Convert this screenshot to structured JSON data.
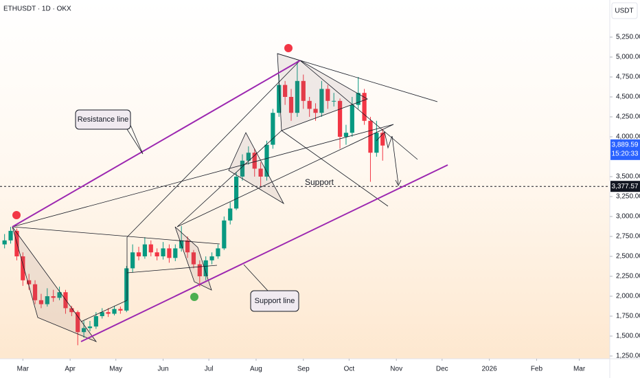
{
  "chart_data": {
    "type": "candlestick",
    "title": "ETHUSDT · 1D · OKX",
    "currency": "USDT",
    "up_color": "#089981",
    "down_color": "#f23645",
    "grid": false,
    "x": [
      -12,
      -8,
      -4,
      0,
      4,
      8,
      12,
      16,
      20,
      24,
      28,
      32,
      36,
      40,
      44,
      48,
      52,
      56,
      60,
      64,
      68,
      72,
      76,
      80,
      84,
      88,
      92,
      96,
      100,
      104,
      108,
      112,
      116,
      120,
      124,
      128,
      132,
      136,
      140,
      144,
      148,
      152,
      156,
      160,
      164,
      168,
      172,
      176,
      180,
      184,
      188,
      192,
      196,
      200,
      204,
      208,
      212,
      216,
      220,
      224,
      228,
      232,
      236
    ],
    "open": [
      2650,
      2700,
      2820,
      2500,
      2200,
      2150,
      1950,
      1900,
      2000,
      1980,
      2050,
      1850,
      1800,
      1550,
      1600,
      1620,
      1750,
      1800,
      1780,
      1840,
      1820,
      2350,
      2550,
      2500,
      2650,
      2550,
      2500,
      2600,
      2480,
      2600,
      2700,
      2550,
      2400,
      2250,
      2450,
      2500,
      2600,
      2950,
      3100,
      3500,
      3700,
      3800,
      3600,
      3500,
      3900,
      4300,
      4650,
      4500,
      4300,
      4700,
      4450,
      4350,
      4300,
      4600,
      4450,
      4450,
      4000,
      4050,
      4400,
      4550,
      4200,
      3800,
      4050
    ],
    "high": [
      2780,
      2870,
      2850,
      2550,
      2280,
      2200,
      2030,
      2100,
      2080,
      2120,
      2080,
      1880,
      1820,
      1690,
      1690,
      1800,
      1850,
      1850,
      1880,
      1870,
      2380,
      2650,
      2620,
      2740,
      2700,
      2600,
      2680,
      2650,
      2650,
      2880,
      2750,
      2580,
      2450,
      2500,
      2550,
      2650,
      3000,
      3180,
      3550,
      3780,
      3880,
      3850,
      3680,
      3950,
      4350,
      4780,
      4700,
      4600,
      4950,
      4780,
      4500,
      4420,
      4700,
      4650,
      4550,
      4480,
      4150,
      4500,
      4750,
      4600,
      4250,
      4200,
      4100
    ],
    "low": [
      2600,
      2660,
      2450,
      2130,
      2080,
      1900,
      1850,
      1870,
      1930,
      1950,
      1780,
      1750,
      1385,
      1480,
      1560,
      1590,
      1720,
      1740,
      1760,
      1780,
      1800,
      2300,
      2450,
      2470,
      2500,
      2450,
      2460,
      2420,
      2440,
      2560,
      2480,
      2350,
      2120,
      2200,
      2400,
      2470,
      2580,
      2900,
      3080,
      3450,
      3650,
      3500,
      3380,
      3450,
      3850,
      4250,
      4400,
      4200,
      4250,
      4350,
      4250,
      4200,
      4250,
      4350,
      4380,
      3850,
      3900,
      4000,
      4350,
      4150,
      3435,
      3750,
      3700
    ],
    "close": [
      2700,
      2820,
      2500,
      2200,
      2150,
      1950,
      1900,
      2000,
      1980,
      2050,
      1850,
      1800,
      1550,
      1600,
      1620,
      1750,
      1800,
      1780,
      1840,
      1820,
      2350,
      2550,
      2500,
      2650,
      2550,
      2500,
      2600,
      2480,
      2600,
      2700,
      2550,
      2400,
      2250,
      2450,
      2500,
      2600,
      2950,
      3100,
      3500,
      3700,
      3800,
      3600,
      3500,
      3900,
      4300,
      4650,
      4500,
      4300,
      4700,
      4450,
      4350,
      4300,
      4600,
      4450,
      4450,
      4000,
      4050,
      4400,
      4550,
      4200,
      3800,
      4050,
      3890
    ],
    "xlim": [
      -15,
      385
    ],
    "xticks": [
      {
        "value": 0,
        "label": "Mar"
      },
      {
        "value": 31,
        "label": "Apr"
      },
      {
        "value": 61,
        "label": "May"
      },
      {
        "value": 92,
        "label": "Jun"
      },
      {
        "value": 122,
        "label": "Jul"
      },
      {
        "value": 153,
        "label": "Aug"
      },
      {
        "value": 184,
        "label": "Sep"
      },
      {
        "value": 214,
        "label": "Oct"
      },
      {
        "value": 245,
        "label": "Nov"
      },
      {
        "value": 275,
        "label": "Dec"
      },
      {
        "value": 306,
        "label": "2026"
      },
      {
        "value": 337,
        "label": "Feb"
      },
      {
        "value": 365,
        "label": "Mar"
      }
    ],
    "ylim": [
      1215.5,
      5715.5
    ],
    "yticks": [
      {
        "value": 1250,
        "label": "1,250.00"
      },
      {
        "value": 1500,
        "label": "1,500.00"
      },
      {
        "value": 1750,
        "label": "1,750.00"
      },
      {
        "value": 2000,
        "label": "2,000.00"
      },
      {
        "value": 2250,
        "label": "2,250.00"
      },
      {
        "value": 2500,
        "label": "2,500.00"
      },
      {
        "value": 2750,
        "label": "2,750.00"
      },
      {
        "value": 3000,
        "label": "3,000.00"
      },
      {
        "value": 3250,
        "label": "3,250.00"
      },
      {
        "value": 3500,
        "label": "3,500.00"
      },
      {
        "value": 4000,
        "label": "4,000.00"
      },
      {
        "value": 4250,
        "label": "4,250.00"
      },
      {
        "value": 4500,
        "label": "4,500.00"
      },
      {
        "value": 4750,
        "label": "4,750.00"
      },
      {
        "value": 5000,
        "label": "5,000.00"
      },
      {
        "value": 5250,
        "label": "5,250.00"
      }
    ],
    "last_price": {
      "value": 3889.59,
      "label": "3,889.59"
    },
    "countdown": "15:20:33",
    "price_line": {
      "value": 3377.57,
      "label": "3,377.57"
    },
    "annotations": {
      "resistance": "Resistance line",
      "support_line": "Support line",
      "support": "Support"
    }
  }
}
